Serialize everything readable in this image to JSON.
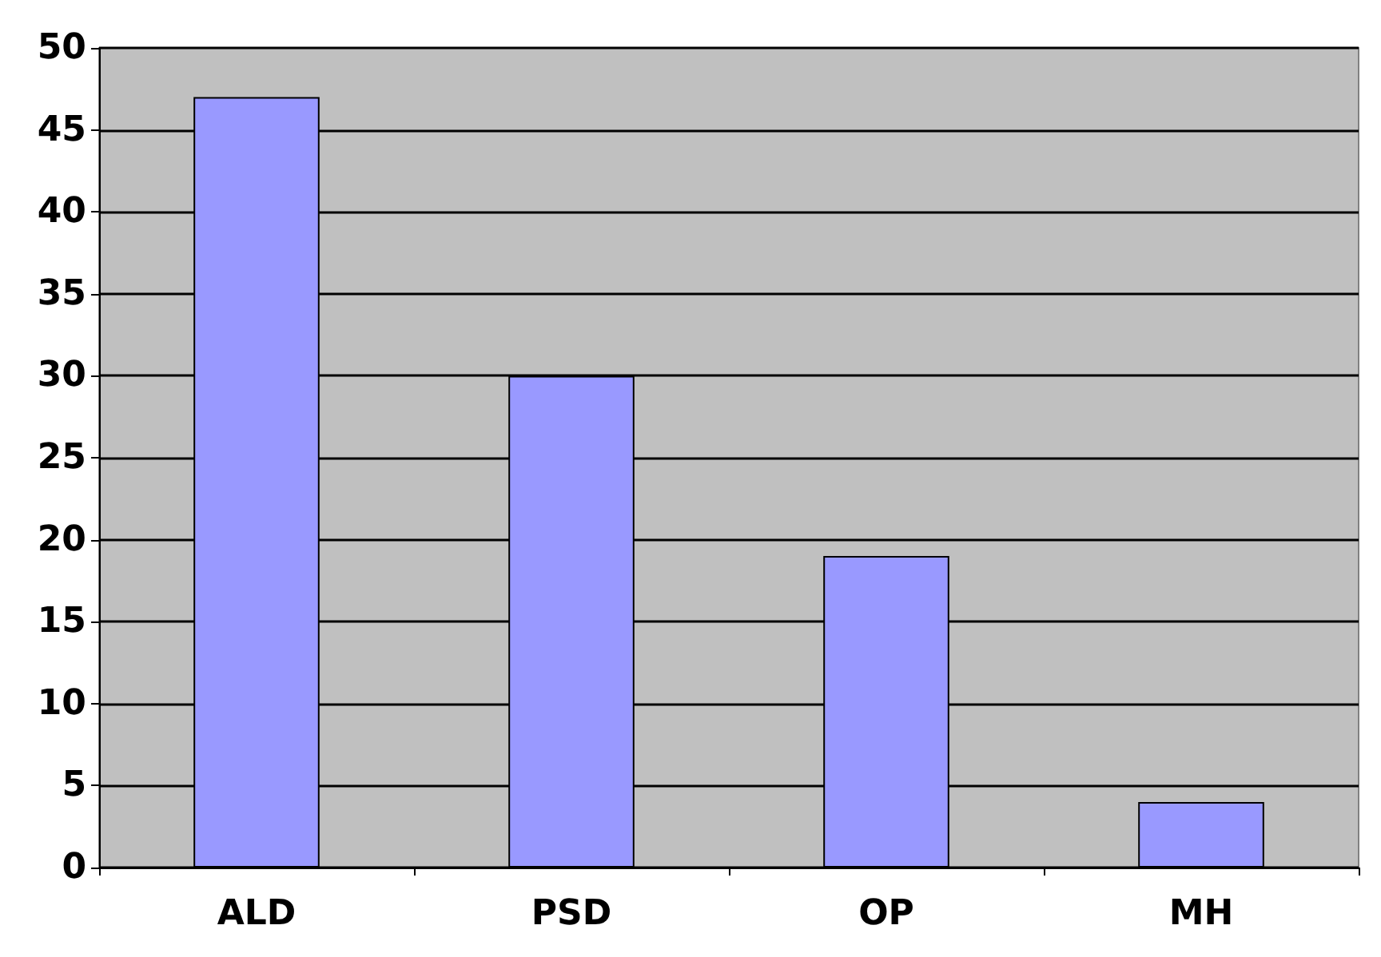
{
  "chart_data": {
    "type": "bar",
    "categories": [
      "ALD",
      "PSD",
      "OP",
      "MH"
    ],
    "values": [
      47,
      30,
      19,
      4
    ],
    "color": "#9999ff",
    "ylim": [
      0,
      50
    ],
    "yticks": [
      0,
      5,
      10,
      15,
      20,
      25,
      30,
      35,
      40,
      45,
      50
    ],
    "grid": "y"
  }
}
